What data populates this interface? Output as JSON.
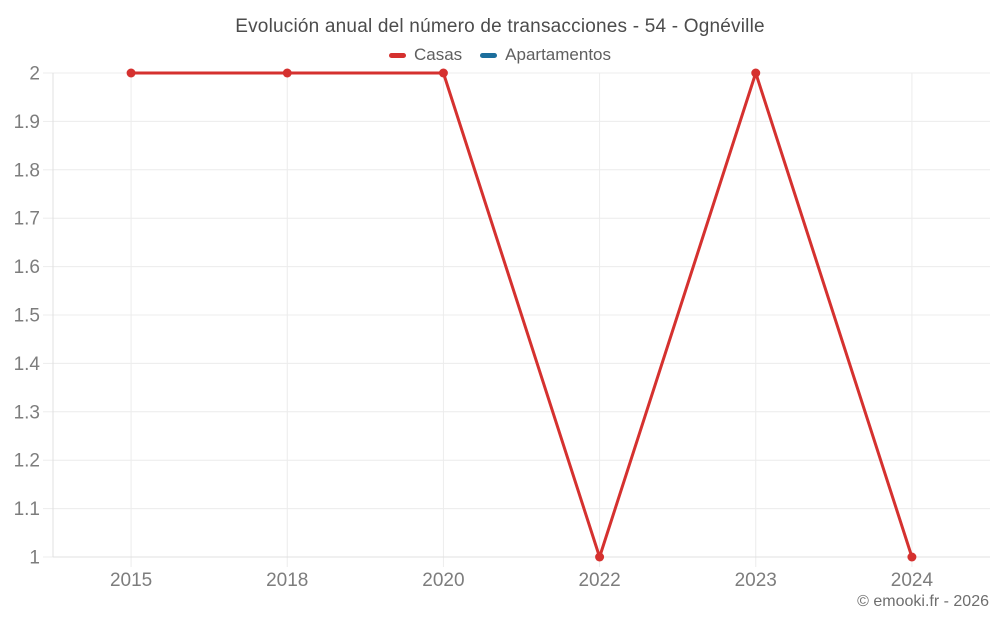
{
  "footer": {
    "credit": "© emooki.fr - 2026"
  },
  "chart_data": {
    "type": "line",
    "title": "Evolución anual del número de transacciones - 54 - Ognéville",
    "categories": [
      "2015",
      "2018",
      "2020",
      "2022",
      "2023",
      "2024"
    ],
    "series": [
      {
        "name": "Casas",
        "color": "#d5312f",
        "values": [
          2,
          2,
          2,
          1,
          2,
          1
        ]
      },
      {
        "name": "Apartamentos",
        "color": "#1c6e9c",
        "values": []
      }
    ],
    "ylim": [
      1,
      2
    ],
    "y_ticks": [
      "1",
      "1.1",
      "1.2",
      "1.3",
      "1.4",
      "1.5",
      "1.6",
      "1.7",
      "1.8",
      "1.9",
      "2"
    ],
    "xlabel": "",
    "ylabel": "",
    "grid": true,
    "legend_position": "top",
    "grid_color": "#ececec",
    "axis_color": "#e0e0e0",
    "tick_label_color": "#7d7d7d",
    "line_width": 3,
    "point_radius": 4.5
  }
}
